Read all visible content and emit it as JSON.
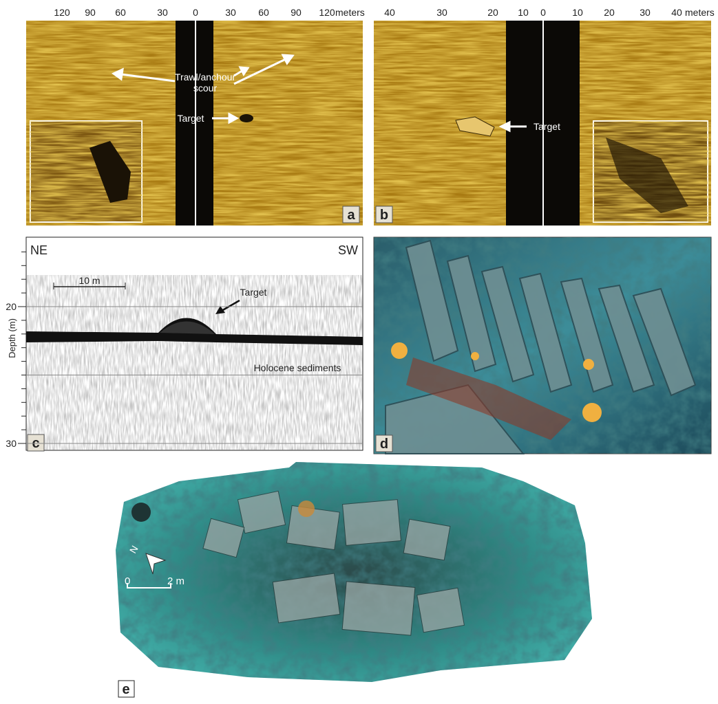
{
  "panel_a": {
    "label": "a",
    "scale_ticks": [
      120,
      90,
      60,
      30,
      0,
      30,
      60,
      90,
      120
    ],
    "scale_unit": "meters",
    "annotations": {
      "scour": [
        "Trawl/anchour",
        "scour"
      ],
      "target": "Target"
    }
  },
  "panel_b": {
    "label": "b",
    "scale_ticks": [
      40,
      30,
      20,
      10,
      0,
      10,
      20,
      30,
      40
    ],
    "scale_unit": "meters",
    "annotations": {
      "target": "Target"
    }
  },
  "panel_c": {
    "label": "c",
    "left": "NE",
    "right": "SW",
    "scale_bar": "10 m",
    "target": "Target",
    "sediments": "Holocene sediments",
    "y_axis_label": "Depth (m)",
    "depth_ticks": [
      20,
      30
    ]
  },
  "panel_d": {
    "label": "d"
  },
  "panel_e": {
    "label": "e",
    "north": "N",
    "scale_start": 0,
    "scale_end": "2 m"
  }
}
